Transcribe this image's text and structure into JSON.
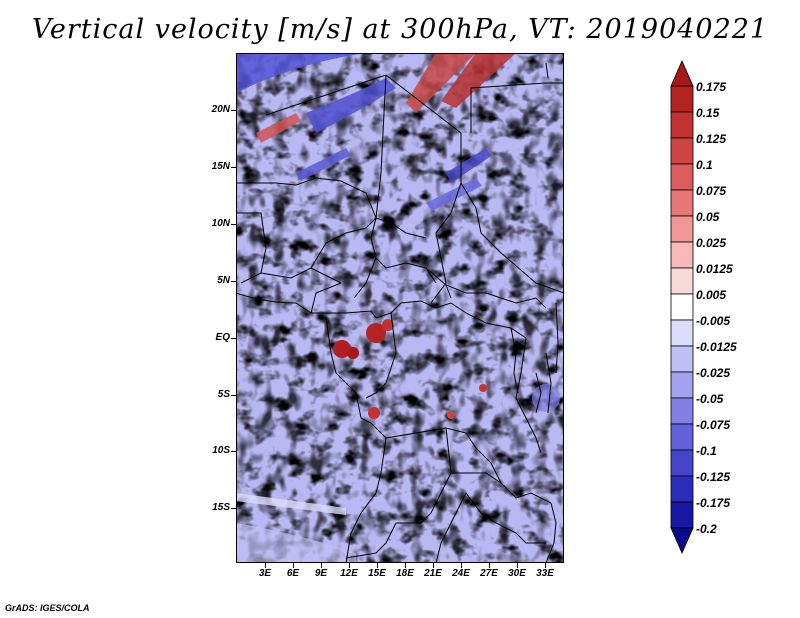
{
  "title": "Vertical velocity [m/s] at 300hPa, VT: 2019040221",
  "footer": "GrADS: IGES/COLA",
  "map": {
    "lat_labels": [
      "20N",
      "15N",
      "10N",
      "5N",
      "EQ",
      "5S",
      "10S",
      "15S"
    ],
    "lon_labels": [
      "3E",
      "6E",
      "9E",
      "12E",
      "15E",
      "18E",
      "21E",
      "24E",
      "27E",
      "30E",
      "33E"
    ]
  },
  "colorbar": {
    "labels": [
      "0.175",
      "0.15",
      "0.125",
      "0.1",
      "0.075",
      "0.05",
      "0.025",
      "0.0125",
      "0.005",
      "-0.005",
      "-0.0125",
      "-0.025",
      "-0.05",
      "-0.075",
      "-0.1",
      "-0.125",
      "-0.175",
      "-0.2"
    ],
    "colors": [
      "#a81818",
      "#b52222",
      "#c23232",
      "#cf4545",
      "#dc5d5d",
      "#e87878",
      "#f09696",
      "#f7b8b8",
      "#fbdada",
      "#ffffff",
      "#dcdcfb",
      "#c0c0f5",
      "#a2a2ee",
      "#8282e6",
      "#6262dc",
      "#4545cc",
      "#2c2cba",
      "#1818a4",
      "#0a0a8a"
    ]
  }
}
